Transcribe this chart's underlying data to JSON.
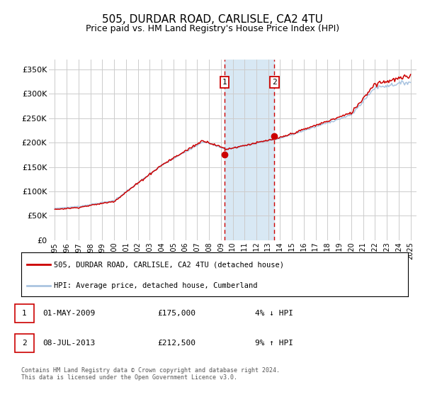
{
  "title": "505, DURDAR ROAD, CARLISLE, CA2 4TU",
  "subtitle": "Price paid vs. HM Land Registry's House Price Index (HPI)",
  "legend_line1": "505, DURDAR ROAD, CARLISLE, CA2 4TU (detached house)",
  "legend_line2": "HPI: Average price, detached house, Cumberland",
  "footnote": "Contains HM Land Registry data © Crown copyright and database right 2024.\nThis data is licensed under the Open Government Licence v3.0.",
  "sale1_date": "01-MAY-2009",
  "sale1_price": "£175,000",
  "sale1_hpi": "4% ↓ HPI",
  "sale2_date": "08-JUL-2013",
  "sale2_price": "£212,500",
  "sale2_hpi": "9% ↑ HPI",
  "sale1_x": 2009.33,
  "sale2_x": 2013.52,
  "sale1_y": 175000,
  "sale2_y": 212500,
  "shade_start": 2009.33,
  "shade_end": 2013.52,
  "ylim_min": 0,
  "ylim_max": 370000,
  "xlim_min": 1994.5,
  "xlim_max": 2025.5,
  "yticks": [
    0,
    50000,
    100000,
    150000,
    200000,
    250000,
    300000,
    350000
  ],
  "ytick_labels": [
    "£0",
    "£50K",
    "£100K",
    "£150K",
    "£200K",
    "£250K",
    "£300K",
    "£350K"
  ],
  "xticks": [
    1995,
    1996,
    1997,
    1998,
    1999,
    2000,
    2001,
    2002,
    2003,
    2004,
    2005,
    2006,
    2007,
    2008,
    2009,
    2010,
    2011,
    2012,
    2013,
    2014,
    2015,
    2016,
    2017,
    2018,
    2019,
    2020,
    2021,
    2022,
    2023,
    2024,
    2025
  ],
  "line_color_red": "#cc0000",
  "line_color_blue": "#aac4e0",
  "shade_color": "#d8e8f4",
  "dashed_color": "#cc0000",
  "grid_color": "#cccccc",
  "box_color": "#cc0000",
  "background": "#ffffff",
  "title_fontsize": 11,
  "subtitle_fontsize": 9,
  "tick_fontsize": 7,
  "ytick_fontsize": 8
}
